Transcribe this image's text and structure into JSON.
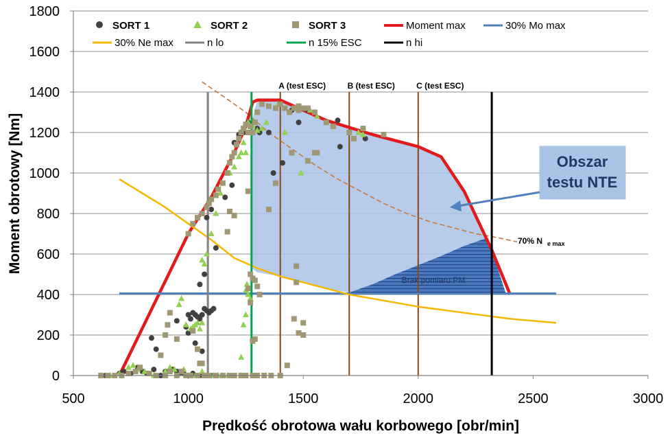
{
  "chart_data": {
    "type": "scatter",
    "xlabel": "Prędkość obrotowa wału korbowego [obr/min]",
    "ylabel": "Moment obrotowy [Nm]",
    "xlim": [
      500,
      3000
    ],
    "ylim": [
      0,
      1800
    ],
    "x_ticks": [
      500,
      1000,
      1500,
      2000,
      2500,
      3000
    ],
    "y_ticks": [
      0,
      200,
      400,
      600,
      800,
      1000,
      1200,
      1400,
      1600,
      1800
    ],
    "grid": "horizontal",
    "legend_placement": "top",
    "scatter_series": [
      {
        "name": "SORT 1",
        "color": "#404040",
        "marker": "circle",
        "points": [
          [
            640,
            0
          ],
          [
            680,
            0
          ],
          [
            700,
            10
          ],
          [
            720,
            20
          ],
          [
            750,
            10
          ],
          [
            780,
            40
          ],
          [
            800,
            20
          ],
          [
            820,
            10
          ],
          [
            850,
            30
          ],
          [
            880,
            0
          ],
          [
            900,
            20
          ],
          [
            930,
            30
          ],
          [
            950,
            20
          ],
          [
            960,
            10
          ],
          [
            980,
            10
          ],
          [
            1000,
            0
          ],
          [
            1020,
            10
          ],
          [
            1050,
            0
          ],
          [
            1080,
            0
          ],
          [
            1100,
            0
          ],
          [
            860,
            130
          ],
          [
            840,
            185
          ],
          [
            950,
            270
          ],
          [
            990,
            240
          ],
          [
            1000,
            300
          ],
          [
            1010,
            280
          ],
          [
            1020,
            310
          ],
          [
            1030,
            300
          ],
          [
            1040,
            290
          ],
          [
            1050,
            280
          ],
          [
            1060,
            300
          ],
          [
            1070,
            330
          ],
          [
            1080,
            320
          ],
          [
            1090,
            310
          ],
          [
            1100,
            320
          ],
          [
            1110,
            330
          ],
          [
            1000,
            210
          ],
          [
            1030,
            160
          ],
          [
            1060,
            120
          ],
          [
            1050,
            450
          ],
          [
            1070,
            500
          ],
          [
            1080,
            780
          ],
          [
            1100,
            820
          ],
          [
            1120,
            630
          ],
          [
            1160,
            880
          ],
          [
            1190,
            940
          ],
          [
            1200,
            1150
          ],
          [
            1220,
            1190
          ],
          [
            1240,
            1200
          ],
          [
            1260,
            1250
          ],
          [
            1300,
            1220
          ],
          [
            1310,
            1200
          ],
          [
            1350,
            1200
          ],
          [
            1370,
            1000
          ],
          [
            1410,
            1050
          ],
          [
            1450,
            1310
          ],
          [
            1480,
            1250
          ],
          [
            1520,
            1310
          ],
          [
            1650,
            1260
          ],
          [
            1660,
            1130
          ],
          [
            1770,
            1170
          ]
        ]
      },
      {
        "name": "SORT 2",
        "color": "#92d050",
        "marker": "triangle",
        "points": [
          [
            620,
            0
          ],
          [
            660,
            0
          ],
          [
            700,
            10
          ],
          [
            740,
            40
          ],
          [
            760,
            50
          ],
          [
            780,
            30
          ],
          [
            810,
            20
          ],
          [
            850,
            0
          ],
          [
            900,
            20
          ],
          [
            920,
            40
          ],
          [
            940,
            30
          ],
          [
            980,
            30
          ],
          [
            1000,
            0
          ],
          [
            1030,
            0
          ],
          [
            1060,
            20
          ],
          [
            1080,
            0
          ],
          [
            1110,
            0
          ],
          [
            1130,
            0
          ],
          [
            1150,
            0
          ],
          [
            1170,
            0
          ],
          [
            1200,
            0
          ],
          [
            1230,
            0
          ],
          [
            1250,
            0
          ],
          [
            960,
            350
          ],
          [
            970,
            380
          ],
          [
            990,
            250
          ],
          [
            1010,
            230
          ],
          [
            1020,
            240
          ],
          [
            1030,
            250
          ],
          [
            1040,
            260
          ],
          [
            1050,
            230
          ],
          [
            1060,
            260
          ],
          [
            1060,
            570
          ],
          [
            1070,
            550
          ],
          [
            1080,
            600
          ],
          [
            1100,
            700
          ],
          [
            1120,
            800
          ],
          [
            1140,
            900
          ],
          [
            1180,
            1000
          ],
          [
            1200,
            1030
          ],
          [
            1220,
            1080
          ],
          [
            1230,
            1100
          ],
          [
            1240,
            1150
          ],
          [
            1250,
            1100
          ],
          [
            1260,
            1250
          ],
          [
            1280,
            1230
          ],
          [
            1300,
            1210
          ],
          [
            1320,
            1220
          ],
          [
            1340,
            1250
          ],
          [
            1250,
            420
          ],
          [
            1255,
            450
          ],
          [
            1260,
            400
          ],
          [
            1270,
            380
          ],
          [
            1250,
            300
          ],
          [
            1240,
            250
          ],
          [
            1230,
            90
          ],
          [
            1390,
            1340
          ],
          [
            1420,
            1200
          ],
          [
            1490,
            1000
          ],
          [
            1530,
            1310
          ],
          [
            1560,
            1280
          ],
          [
            1740,
            1200
          ],
          [
            1760,
            1190
          ]
        ]
      },
      {
        "name": "SORT 3",
        "color": "#a09874",
        "marker": "square",
        "points": [
          [
            620,
            0
          ],
          [
            650,
            0
          ],
          [
            680,
            0
          ],
          [
            710,
            0
          ],
          [
            740,
            10
          ],
          [
            770,
            20
          ],
          [
            790,
            40
          ],
          [
            830,
            10
          ],
          [
            860,
            0
          ],
          [
            900,
            0
          ],
          [
            920,
            20
          ],
          [
            950,
            0
          ],
          [
            970,
            20
          ],
          [
            990,
            0
          ],
          [
            1010,
            0
          ],
          [
            1040,
            0
          ],
          [
            1070,
            0
          ],
          [
            1090,
            0
          ],
          [
            1120,
            0
          ],
          [
            1150,
            0
          ],
          [
            1180,
            0
          ],
          [
            1200,
            0
          ],
          [
            1230,
            0
          ],
          [
            1250,
            0
          ],
          [
            1280,
            0
          ],
          [
            1300,
            0
          ],
          [
            1330,
            0
          ],
          [
            1360,
            0
          ],
          [
            1400,
            0
          ],
          [
            1430,
            50
          ],
          [
            880,
            100
          ],
          [
            900,
            200
          ],
          [
            910,
            250
          ],
          [
            920,
            310
          ],
          [
            950,
            180
          ],
          [
            1020,
            220
          ],
          [
            1040,
            130
          ],
          [
            1050,
            60
          ],
          [
            1060,
            60
          ],
          [
            1080,
            0
          ],
          [
            1000,
            700
          ],
          [
            1020,
            750
          ],
          [
            1040,
            780
          ],
          [
            1060,
            800
          ],
          [
            1080,
            830
          ],
          [
            1090,
            850
          ],
          [
            1100,
            870
          ],
          [
            1120,
            890
          ],
          [
            1130,
            920
          ],
          [
            1150,
            950
          ],
          [
            1170,
            1000
          ],
          [
            1180,
            1050
          ],
          [
            1190,
            1080
          ],
          [
            1200,
            1100
          ],
          [
            1210,
            1140
          ],
          [
            1220,
            1170
          ],
          [
            1230,
            1200
          ],
          [
            1240,
            1220
          ],
          [
            1250,
            1240
          ],
          [
            1260,
            1200
          ],
          [
            1270,
            1230
          ],
          [
            1280,
            1200
          ],
          [
            1290,
            1250
          ],
          [
            1300,
            1300
          ],
          [
            1320,
            1340
          ],
          [
            1350,
            1330
          ],
          [
            1380,
            1320
          ],
          [
            1400,
            1340
          ],
          [
            1420,
            1320
          ],
          [
            1440,
            1300
          ],
          [
            1460,
            1320
          ],
          [
            1480,
            1330
          ],
          [
            1500,
            1320
          ],
          [
            1520,
            1320
          ],
          [
            1550,
            1300
          ],
          [
            1560,
            1100
          ],
          [
            1600,
            1250
          ],
          [
            1630,
            1230
          ],
          [
            1700,
            1200
          ],
          [
            1720,
            1170
          ],
          [
            1760,
            1220
          ],
          [
            1850,
            1190
          ],
          [
            1200,
            790
          ],
          [
            1180,
            810
          ],
          [
            1170,
            710
          ],
          [
            1260,
            910
          ],
          [
            1270,
            500
          ],
          [
            1280,
            480
          ],
          [
            1290,
            470
          ],
          [
            1300,
            440
          ],
          [
            1310,
            400
          ],
          [
            1260,
            430
          ],
          [
            1270,
            360
          ],
          [
            1280,
            170
          ],
          [
            1290,
            180
          ],
          [
            1350,
            820
          ],
          [
            1380,
            950
          ],
          [
            1470,
            540
          ],
          [
            1470,
            460
          ],
          [
            1480,
            210
          ],
          [
            1500,
            200
          ],
          [
            1500,
            260
          ],
          [
            1460,
            280
          ],
          [
            1480,
            1310
          ],
          [
            1520,
            1060
          ],
          [
            1550,
            1100
          ],
          [
            1450,
            1100
          ]
        ]
      }
    ],
    "line_series": [
      {
        "name": "Moment max",
        "color": "#e31a1c",
        "points": [
          [
            700,
            0
          ],
          [
            850,
            350
          ],
          [
            1000,
            700
          ],
          [
            1100,
            880
          ],
          [
            1200,
            1100
          ],
          [
            1250,
            1230
          ],
          [
            1280,
            1350
          ],
          [
            1300,
            1360
          ],
          [
            1400,
            1360
          ],
          [
            1600,
            1260
          ],
          [
            1800,
            1190
          ],
          [
            2000,
            1130
          ],
          [
            2100,
            1080
          ],
          [
            2200,
            910
          ],
          [
            2320,
            620
          ],
          [
            2400,
            400
          ]
        ]
      },
      {
        "name": "30% Mo max",
        "color": "#4f81bd",
        "points": [
          [
            700,
            405
          ],
          [
            2600,
            405
          ]
        ]
      },
      {
        "name": "30% Ne max",
        "color": "#f5b800",
        "points": [
          [
            700,
            970
          ],
          [
            800,
            900
          ],
          [
            900,
            830
          ],
          [
            1000,
            750
          ],
          [
            1100,
            670
          ],
          [
            1200,
            580
          ],
          [
            1300,
            530
          ],
          [
            1400,
            490
          ],
          [
            1500,
            460
          ],
          [
            1600,
            430
          ],
          [
            1700,
            400
          ],
          [
            1800,
            380
          ],
          [
            2000,
            340
          ],
          [
            2200,
            310
          ],
          [
            2400,
            280
          ],
          [
            2600,
            260
          ]
        ]
      },
      {
        "name": "n lo",
        "color": "#808080",
        "points": [
          [
            1085,
            0
          ],
          [
            1085,
            1400
          ]
        ]
      },
      {
        "name": "n 15% ESC",
        "color": "#00a651",
        "points": [
          [
            1275,
            0
          ],
          [
            1275,
            1400
          ]
        ]
      },
      {
        "name": "n hi",
        "color": "#000000",
        "points": [
          [
            2320,
            0
          ],
          [
            2320,
            1400
          ]
        ]
      }
    ],
    "reference_lines": [
      {
        "label": "A (test ESC)",
        "x": 1400,
        "color": "#8b4513"
      },
      {
        "label": "B (test ESC)",
        "x": 1700,
        "color": "#8b4513"
      },
      {
        "label": "C (test ESC)",
        "x": 2000,
        "color": "#8b4513"
      }
    ],
    "nte_area_polygon": [
      [
        1275,
        530
      ],
      [
        1300,
        510
      ],
      [
        1400,
        490
      ],
      [
        1500,
        460
      ],
      [
        1600,
        430
      ],
      [
        1700,
        410
      ],
      [
        1800,
        450
      ],
      [
        1900,
        500
      ],
      [
        2000,
        545
      ],
      [
        2100,
        590
      ],
      [
        2200,
        640
      ],
      [
        2300,
        680
      ],
      [
        2320,
        620
      ],
      [
        2200,
        910
      ],
      [
        2100,
        1080
      ],
      [
        2000,
        1130
      ],
      [
        1800,
        1190
      ],
      [
        1600,
        1260
      ],
      [
        1400,
        1360
      ],
      [
        1300,
        1360
      ],
      [
        1275,
        1250
      ]
    ],
    "pm_area_polygon": [
      [
        1700,
        410
      ],
      [
        2380,
        410
      ],
      [
        2320,
        620
      ],
      [
        2300,
        680
      ],
      [
        2200,
        640
      ],
      [
        2100,
        590
      ],
      [
        2000,
        545
      ],
      [
        1900,
        500
      ],
      [
        1800,
        450
      ]
    ],
    "ne70_curve": [
      [
        1060,
        1450
      ],
      [
        1150,
        1380
      ],
      [
        1250,
        1300
      ],
      [
        1350,
        1200
      ],
      [
        1450,
        1120
      ],
      [
        1550,
        1040
      ],
      [
        1650,
        970
      ],
      [
        1750,
        910
      ],
      [
        1850,
        850
      ],
      [
        1950,
        800
      ],
      [
        2050,
        760
      ],
      [
        2150,
        730
      ],
      [
        2250,
        700
      ],
      [
        2350,
        680
      ],
      [
        2430,
        660
      ]
    ],
    "annotations": {
      "nte_box": [
        "Obszar",
        "testu NTE"
      ],
      "pm_label": "Brak pomiaru PM",
      "ne70_label": "70% N",
      "ne70_sub": "e max"
    }
  }
}
